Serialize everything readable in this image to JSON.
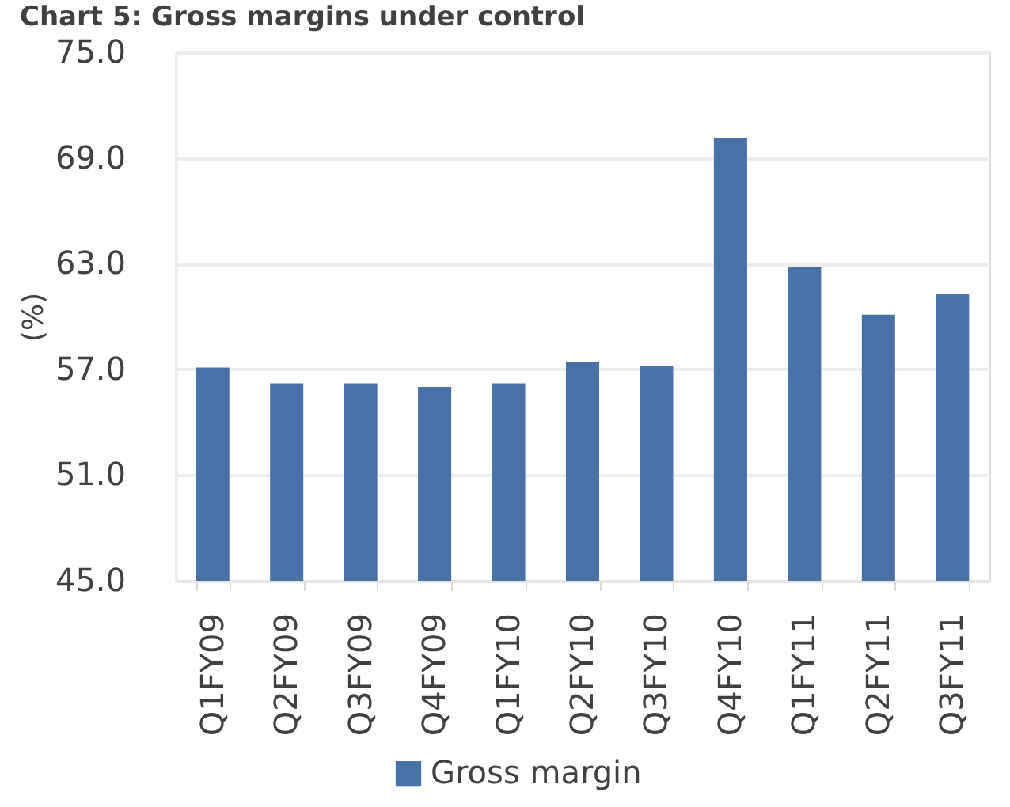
{
  "chart_data": {
    "type": "bar",
    "title": "Chart 5: Gross margins under control",
    "ylabel": "(%)",
    "categories": [
      "Q1FY09",
      "Q2FY09",
      "Q3FY09",
      "Q4FY09",
      "Q1FY10",
      "Q2FY10",
      "Q3FY10",
      "Q4FY10",
      "Q1FY11",
      "Q2FY11",
      "Q3FY11"
    ],
    "series": [
      {
        "name": "Gross margin",
        "color": "#4672a7",
        "values": [
          57.1,
          56.2,
          56.2,
          56.0,
          56.2,
          57.4,
          57.2,
          70.1,
          62.8,
          60.1,
          61.3
        ]
      }
    ],
    "ylim": [
      45,
      75
    ],
    "yticks": [
      {
        "value": 45,
        "label": "45.0"
      },
      {
        "value": 51,
        "label": "51.0"
      },
      {
        "value": 57,
        "label": "57.0"
      },
      {
        "value": 63,
        "label": "63.0"
      },
      {
        "value": 69,
        "label": "69.0"
      },
      {
        "value": 75,
        "label": "75.0"
      }
    ],
    "grid": "y",
    "legend": "bottom"
  }
}
